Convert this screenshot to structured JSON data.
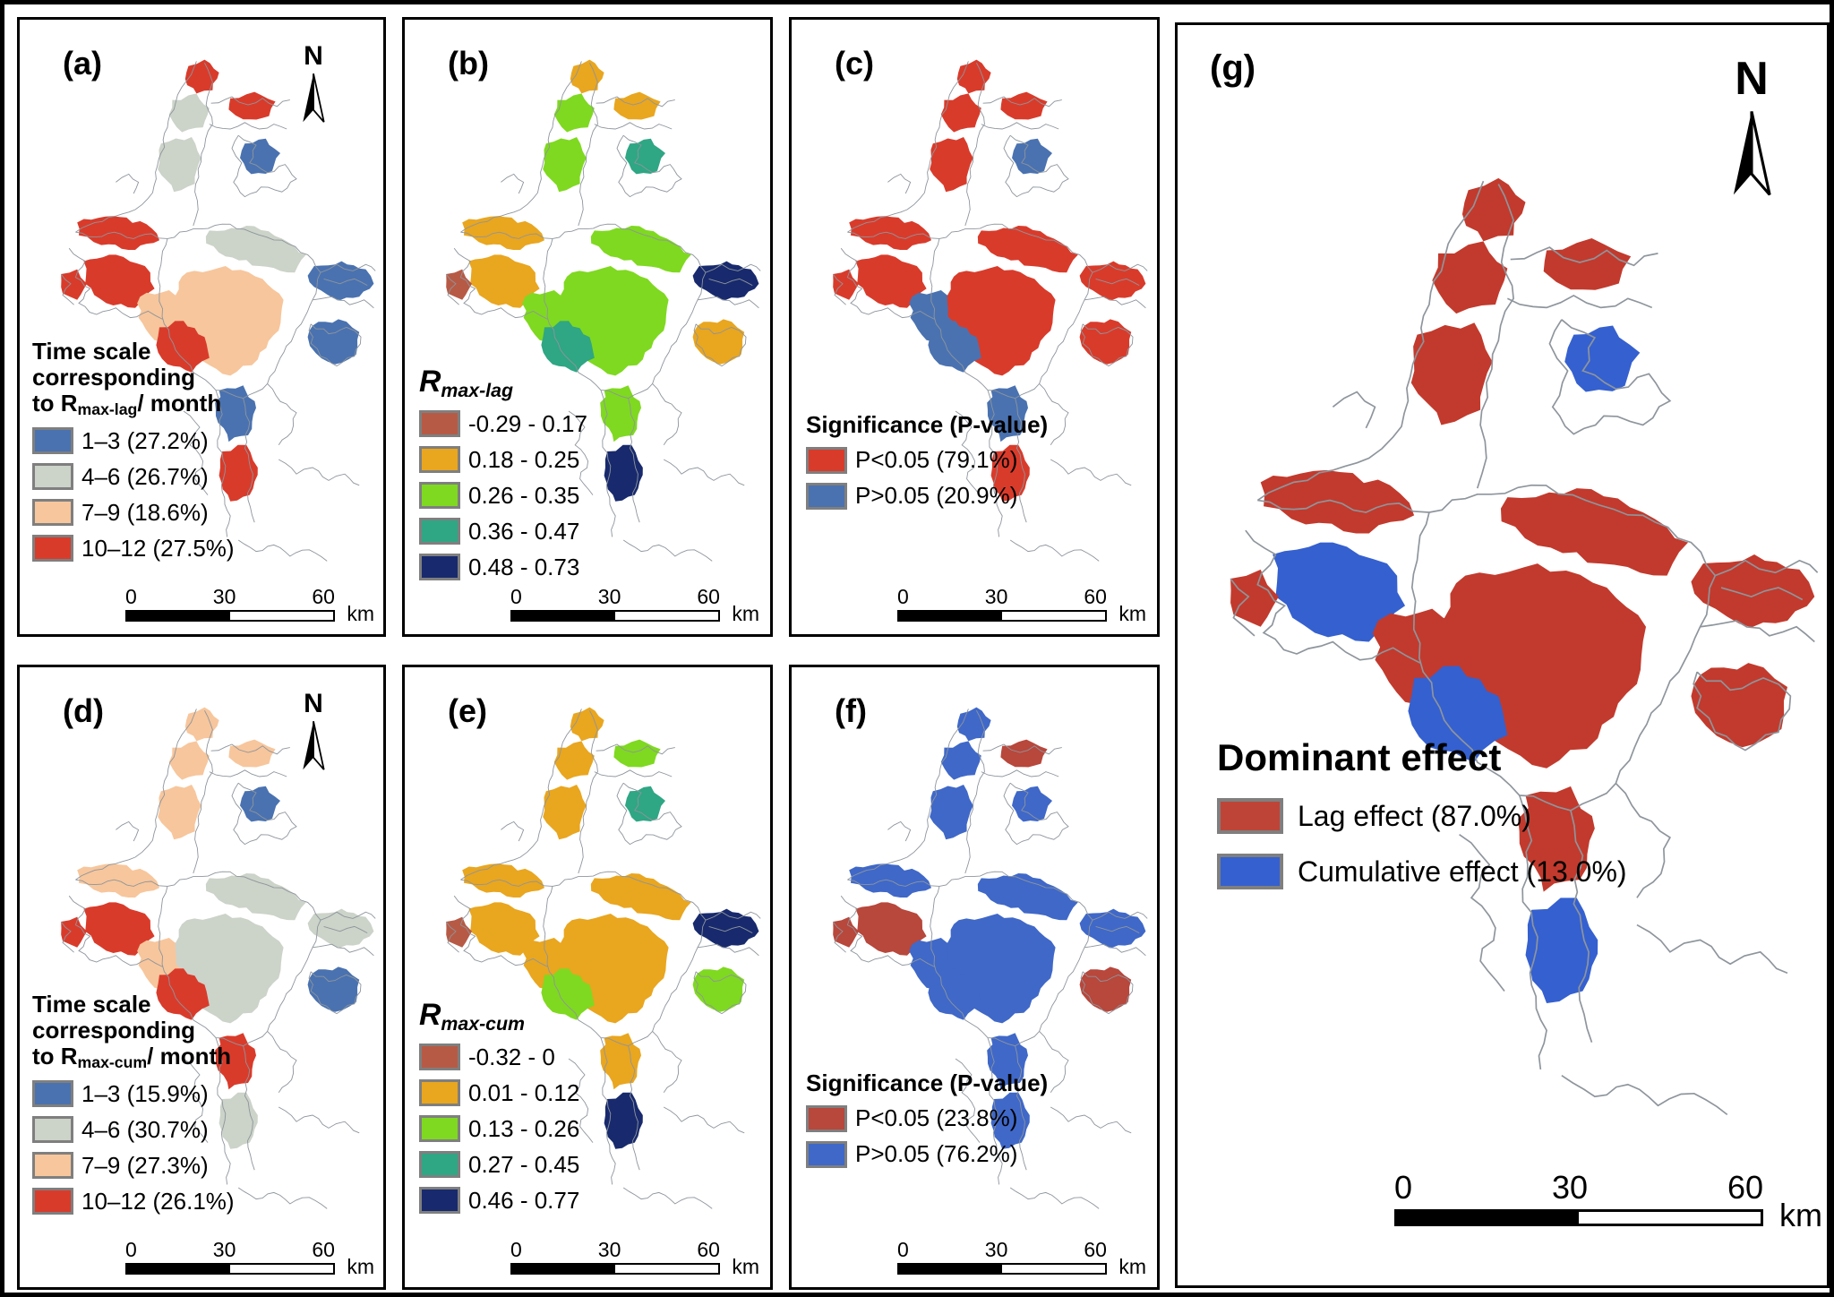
{
  "figure": {
    "north_letter": "N",
    "outline_color": "#8e959c",
    "background": "#ffffff",
    "border_color": "#000000"
  },
  "panels": [
    {
      "id": "a",
      "label": "(a)",
      "size": "small",
      "has_north_arrow": true,
      "legend": {
        "title_parts": [
          {
            "t": "Time scale",
            "s": "b"
          },
          {
            "s": "br"
          },
          {
            "t": " corresponding",
            "s": "b"
          },
          {
            "s": "br"
          },
          {
            "t": "to R",
            "s": "b"
          },
          {
            "t": "max-lag",
            "s": "bsub"
          },
          {
            "t": "/ month",
            "s": "b"
          }
        ],
        "items": [
          {
            "label": "1–3 (27.2%)",
            "color": "#4a72b0"
          },
          {
            "label": "4–6 (26.7%)",
            "color": "#ccd3c9"
          },
          {
            "label": "7–9 (18.6%)",
            "color": "#f7c69c"
          },
          {
            "label": "10–12 (27.5%)",
            "color": "#d93b2b"
          }
        ]
      },
      "scalebar": {
        "labels": [
          "0",
          "30",
          "60"
        ],
        "unit": "km"
      },
      "map_fills": [
        "#d93b2b",
        "#ccd3c9",
        "#ccd3c9",
        "#d93b2b",
        "#4a72b0",
        "#d93b2b",
        "#d93b2b",
        "#f7c69c",
        "#ccd3c9",
        "#f7c69c",
        "#4a72b0",
        "#4a72b0",
        "#4a72b0",
        "#d93b2b",
        "#d93b2b",
        "#d93b2b"
      ]
    },
    {
      "id": "b",
      "label": "(b)",
      "size": "small",
      "has_north_arrow": false,
      "legend": {
        "title_parts": [
          {
            "t": "R",
            "s": "bi"
          },
          {
            "t": "max-lag",
            "s": "bisub"
          }
        ],
        "items": [
          {
            "label": "-0.29 - 0.17",
            "color": "#b75a45"
          },
          {
            "label": "0.18 - 0.25",
            "color": "#e9a61f"
          },
          {
            "label": "0.26 - 0.35",
            "color": "#7fd920"
          },
          {
            "label": "0.36 - 0.47",
            "color": "#2fa684"
          },
          {
            "label": "0.48 - 0.73",
            "color": "#182a6d"
          }
        ]
      },
      "scalebar": {
        "labels": [
          "0",
          "30",
          "60"
        ],
        "unit": "km"
      },
      "map_fills": [
        "#e9a61f",
        "#7fd920",
        "#7fd920",
        "#e9a61f",
        "#2fa684",
        "#e9a61f",
        "#e9a61f",
        "#7fd920",
        "#7fd920",
        "#7fd920",
        "#182a6d",
        "#e9a61f",
        "#7fd920",
        "#182a6d",
        "#b75a45",
        "#2fa684"
      ]
    },
    {
      "id": "c",
      "label": "(c)",
      "size": "small",
      "has_north_arrow": false,
      "legend": {
        "title_parts": [
          {
            "t": "Significance (P-value)",
            "s": "b"
          }
        ],
        "items": [
          {
            "label": "P<0.05 (79.1%)",
            "color": "#d93b2b"
          },
          {
            "label": "P>0.05 (20.9%)",
            "color": "#4a72b0"
          }
        ]
      },
      "scalebar": {
        "labels": [
          "0",
          "30",
          "60"
        ],
        "unit": "km"
      },
      "map_fills": [
        "#d93b2b",
        "#d93b2b",
        "#d93b2b",
        "#d93b2b",
        "#4a72b0",
        "#d93b2b",
        "#d93b2b",
        "#4a72b0",
        "#d93b2b",
        "#d93b2b",
        "#d93b2b",
        "#d93b2b",
        "#4a72b0",
        "#d93b2b",
        "#d93b2b",
        "#4a72b0"
      ]
    },
    {
      "id": "d",
      "label": "(d)",
      "size": "small",
      "has_north_arrow": true,
      "legend": {
        "title_parts": [
          {
            "t": "Time scale",
            "s": "b"
          },
          {
            "s": "br"
          },
          {
            "t": " corresponding",
            "s": "b"
          },
          {
            "s": "br"
          },
          {
            "t": "to R",
            "s": "b"
          },
          {
            "t": "max-cum",
            "s": "bsub"
          },
          {
            "t": "/ month",
            "s": "b"
          }
        ],
        "items": [
          {
            "label": "1–3 (15.9%)",
            "color": "#4a72b0"
          },
          {
            "label": "4–6 (30.7%)",
            "color": "#ccd3c9"
          },
          {
            "label": "7–9 (27.3%)",
            "color": "#f7c69c"
          },
          {
            "label": "10–12 (26.1%)",
            "color": "#d93b2b"
          }
        ]
      },
      "scalebar": {
        "labels": [
          "0",
          "30",
          "60"
        ],
        "unit": "km"
      },
      "map_fills": [
        "#f7c69c",
        "#f7c69c",
        "#f7c69c",
        "#f7c69c",
        "#4a72b0",
        "#f7c69c",
        "#d93b2b",
        "#f7c69c",
        "#ccd3c9",
        "#ccd3c9",
        "#ccd3c9",
        "#4a72b0",
        "#d93b2b",
        "#ccd3c9",
        "#d93b2b",
        "#d93b2b"
      ]
    },
    {
      "id": "e",
      "label": "(e)",
      "size": "small",
      "has_north_arrow": false,
      "legend": {
        "title_parts": [
          {
            "t": "R",
            "s": "bi"
          },
          {
            "t": "max-cum",
            "s": "bisub"
          }
        ],
        "items": [
          {
            "label": "-0.32 - 0",
            "color": "#b75a45"
          },
          {
            "label": "0.01 - 0.12",
            "color": "#e9a61f"
          },
          {
            "label": "0.13 - 0.26",
            "color": "#7fd920"
          },
          {
            "label": "0.27 - 0.45",
            "color": "#2fa684"
          },
          {
            "label": "0.46 - 0.77",
            "color": "#182a6d"
          }
        ]
      },
      "scalebar": {
        "labels": [
          "0",
          "30",
          "60"
        ],
        "unit": "km"
      },
      "map_fills": [
        "#e9a61f",
        "#e9a61f",
        "#e9a61f",
        "#7fd920",
        "#2fa684",
        "#e9a61f",
        "#e9a61f",
        "#e9a61f",
        "#e9a61f",
        "#e9a61f",
        "#182a6d",
        "#7fd920",
        "#e9a61f",
        "#182a6d",
        "#b75a45",
        "#7fd920"
      ]
    },
    {
      "id": "f",
      "label": "(f)",
      "size": "small",
      "has_north_arrow": false,
      "legend": {
        "title_parts": [
          {
            "t": "Significance (P-value)",
            "s": "b"
          }
        ],
        "items": [
          {
            "label": "P<0.05 (23.8%)",
            "color": "#b8473c"
          },
          {
            "label": "P>0.05 (76.2%)",
            "color": "#3f68c8"
          }
        ]
      },
      "scalebar": {
        "labels": [
          "0",
          "30",
          "60"
        ],
        "unit": "km"
      },
      "map_fills": [
        "#3f68c8",
        "#3f68c8",
        "#3f68c8",
        "#b8473c",
        "#3f68c8",
        "#3f68c8",
        "#b8473c",
        "#3f68c8",
        "#3f68c8",
        "#3f68c8",
        "#3f68c8",
        "#b8473c",
        "#3f68c8",
        "#3f68c8",
        "#b8473c",
        "#3f68c8"
      ]
    },
    {
      "id": "g",
      "label": "(g)",
      "size": "large",
      "has_north_arrow": true,
      "legend": {
        "title_parts": [
          {
            "t": "Dominant effect",
            "s": "b"
          }
        ],
        "items": [
          {
            "label": "Lag effect (87.0%)",
            "color": "#bf4438"
          },
          {
            "label": "Cumulative effect (13.0%)",
            "color": "#3560cf"
          }
        ]
      },
      "scalebar": {
        "labels": [
          "0",
          "30",
          "60"
        ],
        "unit": "km"
      },
      "map_fills": [
        "#c23a2d",
        "#c23a2d",
        "#c23a2d",
        "#c23a2d",
        "#3560cf",
        "#c23a2d",
        "#3560cf",
        "#c23a2d",
        "#c23a2d",
        "#c23a2d",
        "#c23a2d",
        "#c23a2d",
        "#c23a2d",
        "#3560cf",
        "#c23a2d",
        "#3560cf"
      ]
    }
  ]
}
